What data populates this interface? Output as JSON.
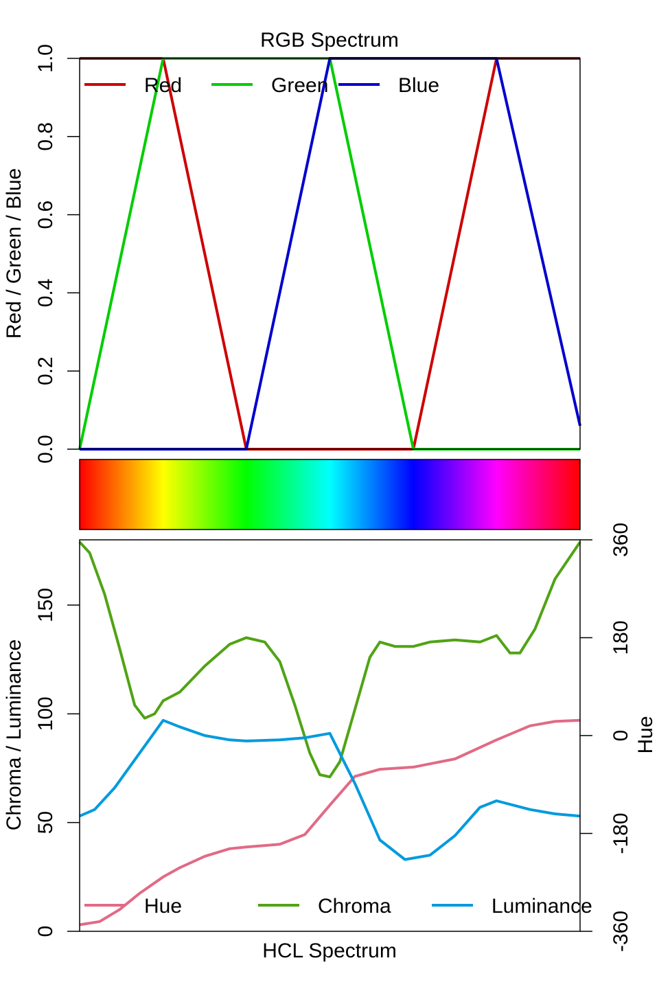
{
  "chart_data": [
    {
      "type": "line",
      "title": "RGB Spectrum",
      "ylabel": "Red / Green / Blue",
      "xlabel": "",
      "xlim": [
        0,
        1
      ],
      "ylim": [
        0,
        1
      ],
      "y_ticks": [
        "0.0",
        "0.2",
        "0.4",
        "0.6",
        "0.8",
        "1.0"
      ],
      "y_tick_values": [
        0,
        0.2,
        0.4,
        0.6,
        0.8,
        1.0
      ],
      "x_ticks_shown": false,
      "grid": false,
      "legend_position": "top",
      "series": [
        {
          "name": "Red",
          "color": "#CD0000",
          "points": [
            [
              0,
              1
            ],
            [
              0.167,
              1
            ],
            [
              0.333,
              0
            ],
            [
              0.667,
              0
            ],
            [
              0.833,
              1
            ],
            [
              1,
              1
            ]
          ]
        },
        {
          "name": "Green",
          "color": "#00CD00",
          "points": [
            [
              0,
              0
            ],
            [
              0.167,
              1
            ],
            [
              0.5,
              1
            ],
            [
              0.667,
              0
            ],
            [
              1,
              0
            ]
          ]
        },
        {
          "name": "Blue",
          "color": "#0000CD",
          "points": [
            [
              0,
              0
            ],
            [
              0.333,
              0
            ],
            [
              0.5,
              1
            ],
            [
              0.833,
              1
            ],
            [
              1,
              0.06
            ]
          ]
        }
      ]
    },
    {
      "type": "heatmap",
      "title": "",
      "gradient_stops": [
        {
          "pos": 0,
          "color": "#FF0000"
        },
        {
          "pos": 0.167,
          "color": "#FFFF00"
        },
        {
          "pos": 0.333,
          "color": "#00FF00"
        },
        {
          "pos": 0.5,
          "color": "#00FFFF"
        },
        {
          "pos": 0.667,
          "color": "#0000FF"
        },
        {
          "pos": 0.833,
          "color": "#FF00FF"
        },
        {
          "pos": 1,
          "color": "#FF0000"
        }
      ]
    },
    {
      "type": "line",
      "title": "",
      "xlabel": "HCL Spectrum",
      "ylabel": "Chroma / Luminance",
      "ylabel_right": "Hue",
      "xlim": [
        0,
        1
      ],
      "ylim": [
        0,
        180
      ],
      "ylim_right": [
        -360,
        360
      ],
      "y_ticks": [
        "0",
        "50",
        "100",
        "150"
      ],
      "y_tick_values": [
        0,
        50,
        100,
        150
      ],
      "y_ticks_right": [
        "-360",
        "-180",
        "0",
        "180",
        "360"
      ],
      "y_tick_values_right": [
        -360,
        -180,
        0,
        180,
        360
      ],
      "x_ticks_shown": false,
      "grid": false,
      "legend_position": "bottom",
      "series": [
        {
          "name": "Hue",
          "color": "#E16A86",
          "axis": "right",
          "points": [
            [
              0,
              -348
            ],
            [
              0.04,
              -342
            ],
            [
              0.08,
              -320
            ],
            [
              0.12,
              -290
            ],
            [
              0.167,
              -260
            ],
            [
              0.2,
              -243
            ],
            [
              0.25,
              -222
            ],
            [
              0.3,
              -208
            ],
            [
              0.333,
              -205
            ],
            [
              0.4,
              -200
            ],
            [
              0.45,
              -182
            ],
            [
              0.5,
              -128
            ],
            [
              0.55,
              -75
            ],
            [
              0.6,
              -62
            ],
            [
              0.667,
              -58
            ],
            [
              0.75,
              -43
            ],
            [
              0.833,
              -8
            ],
            [
              0.9,
              18
            ],
            [
              0.95,
              26
            ],
            [
              1,
              28
            ]
          ]
        },
        {
          "name": "Chroma",
          "color": "#50A315",
          "axis": "left",
          "points": [
            [
              0,
              179
            ],
            [
              0.02,
              174
            ],
            [
              0.05,
              155
            ],
            [
              0.08,
              130
            ],
            [
              0.11,
              104
            ],
            [
              0.13,
              98
            ],
            [
              0.15,
              100
            ],
            [
              0.167,
              106
            ],
            [
              0.2,
              110
            ],
            [
              0.25,
              122
            ],
            [
              0.3,
              132
            ],
            [
              0.333,
              135
            ],
            [
              0.37,
              133
            ],
            [
              0.4,
              124
            ],
            [
              0.43,
              104
            ],
            [
              0.46,
              82
            ],
            [
              0.48,
              72
            ],
            [
              0.5,
              71
            ],
            [
              0.52,
              78
            ],
            [
              0.55,
              102
            ],
            [
              0.58,
              126
            ],
            [
              0.6,
              133
            ],
            [
              0.63,
              131
            ],
            [
              0.667,
              131
            ],
            [
              0.7,
              133
            ],
            [
              0.75,
              134
            ],
            [
              0.8,
              133
            ],
            [
              0.833,
              136
            ],
            [
              0.86,
              128
            ],
            [
              0.88,
              128
            ],
            [
              0.91,
              139
            ],
            [
              0.95,
              162
            ],
            [
              1,
              179
            ]
          ]
        },
        {
          "name": "Luminance",
          "color": "#009ADE",
          "axis": "left",
          "points": [
            [
              0,
              53
            ],
            [
              0.03,
              56
            ],
            [
              0.07,
              66
            ],
            [
              0.12,
              82
            ],
            [
              0.167,
              97
            ],
            [
              0.2,
              94
            ],
            [
              0.25,
              90
            ],
            [
              0.3,
              88
            ],
            [
              0.333,
              87.5
            ],
            [
              0.4,
              88
            ],
            [
              0.45,
              89
            ],
            [
              0.5,
              91
            ],
            [
              0.55,
              68
            ],
            [
              0.6,
              42
            ],
            [
              0.65,
              33
            ],
            [
              0.7,
              35
            ],
            [
              0.75,
              44
            ],
            [
              0.8,
              57
            ],
            [
              0.833,
              60
            ],
            [
              0.9,
              56
            ],
            [
              0.95,
              54
            ],
            [
              1,
              53
            ]
          ]
        }
      ]
    }
  ]
}
